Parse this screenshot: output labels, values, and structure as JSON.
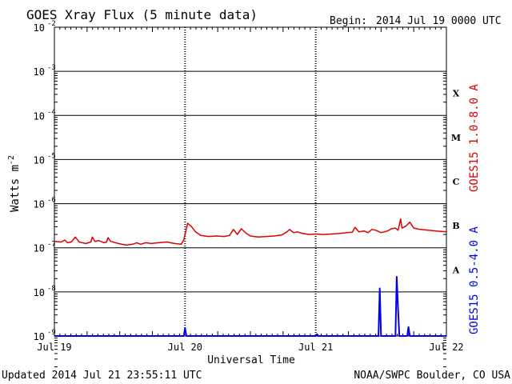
{
  "header": {
    "title": "GOES Xray Flux (5 minute data)",
    "begin_label": "Begin:",
    "begin_value": "2014 Jul 19 0000 UTC"
  },
  "footer": {
    "updated": "Updated 2014 Jul 21 23:55:11 UTC",
    "credit": "NOAA/SWPC Boulder, CO USA"
  },
  "chart_data": {
    "type": "line",
    "xlabel": "Universal Time",
    "ylabel": "Watts m",
    "ylabel_superscript": "-2",
    "yscale": "log",
    "ylim": [
      1e-09,
      0.01
    ],
    "y_ticks": [
      {
        "value": 0.01,
        "mantissa": "10",
        "exp": "-2"
      },
      {
        "value": 0.001,
        "mantissa": "10",
        "exp": "-3"
      },
      {
        "value": 0.0001,
        "mantissa": "10",
        "exp": "-4"
      },
      {
        "value": 1e-05,
        "mantissa": "10",
        "exp": "-5"
      },
      {
        "value": 1e-06,
        "mantissa": "10",
        "exp": "-6"
      },
      {
        "value": 1e-07,
        "mantissa": "10",
        "exp": "-7"
      },
      {
        "value": 1e-08,
        "mantissa": "10",
        "exp": "-8"
      },
      {
        "value": 1e-09,
        "mantissa": "10",
        "exp": "-9"
      }
    ],
    "x_ticks": [
      {
        "day": 0,
        "label": "Jul 19"
      },
      {
        "day": 1,
        "label": "Jul 20"
      },
      {
        "day": 2,
        "label": "Jul 21"
      },
      {
        "day": 3,
        "label": "Jul 22"
      }
    ],
    "xlim_days": [
      0,
      3
    ],
    "flare_classes": [
      {
        "label": "X",
        "low": 0.0001,
        "high": 0.001
      },
      {
        "label": "M",
        "low": 1e-05,
        "high": 0.0001
      },
      {
        "label": "C",
        "low": 1e-06,
        "high": 1e-05
      },
      {
        "label": "B",
        "low": 1e-07,
        "high": 1e-06
      },
      {
        "label": "A",
        "low": 1e-08,
        "high": 1e-07
      }
    ],
    "grid": true,
    "series": [
      {
        "name": "GOES15 1.0-8.0 A",
        "color": "#dd0000",
        "points": [
          [
            0.0,
            1.4e-07
          ],
          [
            0.05,
            1.35e-07
          ],
          [
            0.08,
            1.5e-07
          ],
          [
            0.1,
            1.3e-07
          ],
          [
            0.13,
            1.35e-07
          ],
          [
            0.16,
            1.75e-07
          ],
          [
            0.19,
            1.35e-07
          ],
          [
            0.24,
            1.25e-07
          ],
          [
            0.28,
            1.35e-07
          ],
          [
            0.29,
            1.75e-07
          ],
          [
            0.31,
            1.4e-07
          ],
          [
            0.34,
            1.45e-07
          ],
          [
            0.38,
            1.3e-07
          ],
          [
            0.4,
            1.35e-07
          ],
          [
            0.41,
            1.7e-07
          ],
          [
            0.43,
            1.4e-07
          ],
          [
            0.49,
            1.25e-07
          ],
          [
            0.55,
            1.15e-07
          ],
          [
            0.6,
            1.2e-07
          ],
          [
            0.63,
            1.3e-07
          ],
          [
            0.66,
            1.2e-07
          ],
          [
            0.7,
            1.3e-07
          ],
          [
            0.74,
            1.25e-07
          ],
          [
            0.8,
            1.3e-07
          ],
          [
            0.86,
            1.35e-07
          ],
          [
            0.92,
            1.25e-07
          ],
          [
            0.97,
            1.2e-07
          ],
          [
            0.99,
            1.5e-07
          ],
          [
            1.02,
            3.6e-07
          ],
          [
            1.05,
            3e-07
          ],
          [
            1.08,
            2.3e-07
          ],
          [
            1.12,
            1.9e-07
          ],
          [
            1.18,
            1.8e-07
          ],
          [
            1.24,
            1.85e-07
          ],
          [
            1.3,
            1.8e-07
          ],
          [
            1.34,
            1.9e-07
          ],
          [
            1.37,
            2.6e-07
          ],
          [
            1.4,
            2e-07
          ],
          [
            1.43,
            2.7e-07
          ],
          [
            1.47,
            2.1e-07
          ],
          [
            1.5,
            1.85e-07
          ],
          [
            1.56,
            1.75e-07
          ],
          [
            1.62,
            1.8e-07
          ],
          [
            1.68,
            1.85e-07
          ],
          [
            1.74,
            1.95e-07
          ],
          [
            1.78,
            2.3e-07
          ],
          [
            1.8,
            2.6e-07
          ],
          [
            1.83,
            2.2e-07
          ],
          [
            1.86,
            2.3e-07
          ],
          [
            1.9,
            2.1e-07
          ],
          [
            1.95,
            2e-07
          ],
          [
            2.0,
            2.05e-07
          ],
          [
            2.06,
            2e-07
          ],
          [
            2.12,
            2.05e-07
          ],
          [
            2.18,
            2.1e-07
          ],
          [
            2.24,
            2.2e-07
          ],
          [
            2.28,
            2.25e-07
          ],
          [
            2.3,
            2.9e-07
          ],
          [
            2.33,
            2.3e-07
          ],
          [
            2.37,
            2.4e-07
          ],
          [
            2.4,
            2.2e-07
          ],
          [
            2.43,
            2.6e-07
          ],
          [
            2.46,
            2.5e-07
          ],
          [
            2.5,
            2.2e-07
          ],
          [
            2.55,
            2.4e-07
          ],
          [
            2.58,
            2.7e-07
          ],
          [
            2.61,
            2.8e-07
          ],
          [
            2.63,
            2.5e-07
          ],
          [
            2.65,
            4.5e-07
          ],
          [
            2.66,
            2.8e-07
          ],
          [
            2.69,
            3.1e-07
          ],
          [
            2.72,
            3.8e-07
          ],
          [
            2.75,
            2.8e-07
          ],
          [
            2.8,
            2.6e-07
          ],
          [
            2.86,
            2.5e-07
          ],
          [
            2.92,
            2.4e-07
          ],
          [
            2.96,
            2.35e-07
          ],
          [
            3.0,
            2.3e-07
          ]
        ]
      },
      {
        "name": "GOES15 0.5-4.0 A",
        "color": "#0000ee",
        "points": [
          [
            0.0,
            8e-10
          ],
          [
            0.99,
            8e-10
          ],
          [
            1.0,
            1.5e-09
          ],
          [
            1.01,
            8e-10
          ],
          [
            2.0,
            8e-10
          ],
          [
            2.01,
            1.1e-09
          ],
          [
            2.02,
            8e-10
          ],
          [
            2.48,
            8e-10
          ],
          [
            2.49,
            1.2e-08
          ],
          [
            2.5,
            1e-09
          ],
          [
            2.51,
            8e-10
          ],
          [
            2.61,
            8e-10
          ],
          [
            2.62,
            2.2e-08
          ],
          [
            2.63,
            4e-09
          ],
          [
            2.64,
            8e-10
          ],
          [
            2.7,
            8e-10
          ],
          [
            2.71,
            1.6e-09
          ],
          [
            2.72,
            8e-10
          ],
          [
            3.0,
            8e-10
          ]
        ]
      }
    ]
  }
}
